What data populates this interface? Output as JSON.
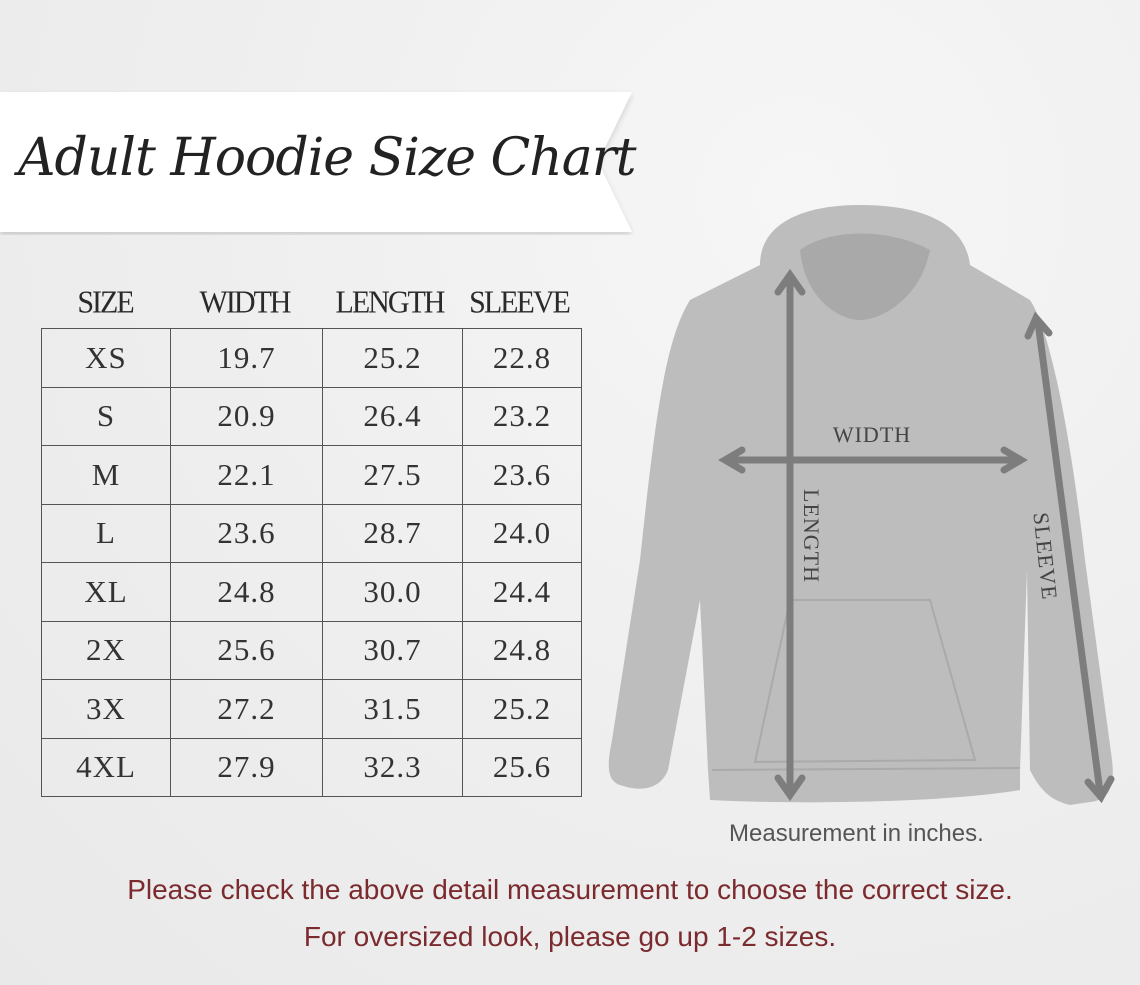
{
  "title": "Adult Hoodie Size Chart",
  "table": {
    "headers": [
      "SIZE",
      "WIDTH",
      "LENGTH",
      "SLEEVE"
    ],
    "rows": [
      [
        "XS",
        "19.7",
        "25.2",
        "22.8"
      ],
      [
        "S",
        "20.9",
        "26.4",
        "23.2"
      ],
      [
        "M",
        "22.1",
        "27.5",
        "23.6"
      ],
      [
        "L",
        "23.6",
        "28.7",
        "24.0"
      ],
      [
        "XL",
        "24.8",
        "30.0",
        "24.4"
      ],
      [
        "2X",
        "25.6",
        "30.7",
        "24.8"
      ],
      [
        "3X",
        "27.2",
        "31.5",
        "25.2"
      ],
      [
        "4XL",
        "27.9",
        "32.3",
        "25.6"
      ]
    ]
  },
  "diagram": {
    "width_label": "WIDTH",
    "length_label": "LENGTH",
    "sleeve_label": "SLEEVE"
  },
  "note": "Measurement in inches.",
  "footer": {
    "line1": "Please check the above detail measurement to choose the correct size.",
    "line2": "For oversized look,  please go up 1-2 sizes."
  },
  "colors": {
    "footer_text": "#7b2a2e",
    "hoodie": "#b9b9b9",
    "arrows": "#7d7d7d"
  }
}
